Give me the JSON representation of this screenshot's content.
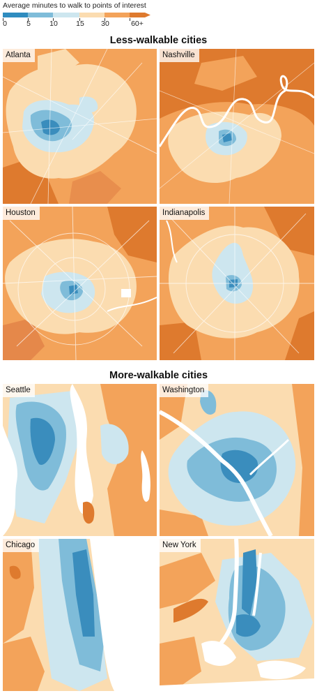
{
  "legend": {
    "title": "Average minutes to walk to points of interest",
    "ticks": [
      "0",
      "5",
      "10",
      "15",
      "30",
      "60+"
    ],
    "colors": [
      "#2f8cbf",
      "#7fbcd9",
      "#cde6ef",
      "#fbdcb0",
      "#f3a35a",
      "#de7a2e"
    ],
    "arrow_color": "#e9893c"
  },
  "sections": {
    "less_walkable": "Less-walkable cities",
    "more_walkable": "More-walkable cities"
  },
  "cities": {
    "atlanta": "Atlanta",
    "nashville": "Nashville",
    "houston": "Houston",
    "indianapolis": "Indianapolis",
    "seattle": "Seattle",
    "washington": "Washington",
    "chicago": "Chicago",
    "new_york": "New York"
  },
  "palette": {
    "dark_orange": "#d9702a",
    "orange": "#ee9a52",
    "light_orange": "#f6bd84",
    "peach": "#fad9b0",
    "light_blue": "#c5e2ee",
    "blue": "#7dbbd8",
    "dark_blue": "#3a8dbd",
    "water": "#ffffff"
  }
}
